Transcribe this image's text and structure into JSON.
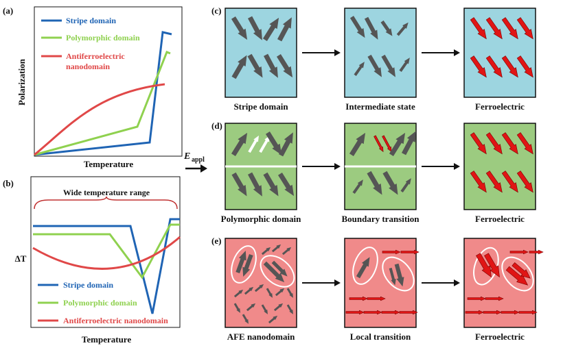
{
  "panel_a": {
    "label": "(a)",
    "legend": [
      "Stripe domain",
      "Polymorphic domain",
      "Antiferroelectric",
      "nanodomain"
    ],
    "y_label": "Polarization",
    "x_label": "Temperature"
  },
  "panel_b": {
    "label": "(b)",
    "annotation": "Wide temperature range",
    "legend": [
      "Stripe domain",
      "Polymorphic domain",
      "Antiferroelectric nanodomain"
    ],
    "y_label": "ΔT",
    "x_label": "Temperature"
  },
  "field": {
    "symbol": "E",
    "subscript": "appl"
  },
  "rows": [
    {
      "label": "(c)",
      "states": [
        "Stripe domain",
        "Intermediate state",
        "Ferroelectric"
      ]
    },
    {
      "label": "(d)",
      "states": [
        "Polymorphic domain",
        "Boundary transition",
        "Ferroelectric"
      ]
    },
    {
      "label": "(e)",
      "states": [
        "AFE nanodomain",
        "Local transition",
        "Ferroelectric"
      ]
    }
  ]
}
